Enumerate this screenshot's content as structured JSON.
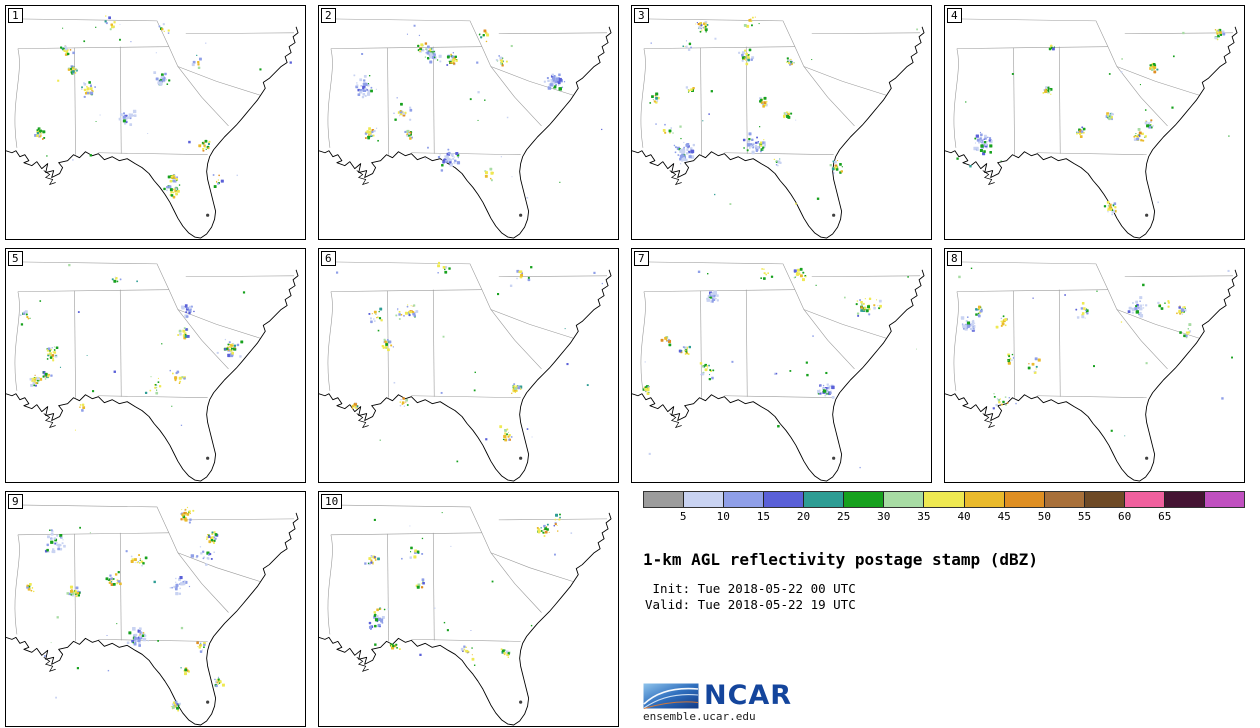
{
  "figure": {
    "title": "1-km AGL reflectivity postage stamp (dBZ)",
    "init_line": " Init: Tue 2018-05-22 00 UTC",
    "valid_line": "Valid: Tue 2018-05-22 19 UTC"
  },
  "panels": [
    {
      "label": "1"
    },
    {
      "label": "2"
    },
    {
      "label": "3"
    },
    {
      "label": "4"
    },
    {
      "label": "5"
    },
    {
      "label": "6"
    },
    {
      "label": "7"
    },
    {
      "label": "8"
    },
    {
      "label": "9"
    },
    {
      "label": "10"
    }
  ],
  "colorbar": {
    "units": "dBZ",
    "tick_labels": [
      "5",
      "10",
      "15",
      "20",
      "25",
      "30",
      "35",
      "40",
      "45",
      "50",
      "55",
      "60",
      "65"
    ],
    "tick_values": [
      5,
      10,
      15,
      20,
      25,
      30,
      35,
      40,
      45,
      50,
      55,
      60,
      65
    ],
    "segment_colors": [
      "#9c9c9c",
      "#c9d3f2",
      "#8f9fe8",
      "#5a60d8",
      "#2e9d94",
      "#17a11e",
      "#a8dca4",
      "#efe952",
      "#eaba2c",
      "#df8f23",
      "#a8703a",
      "#6e4a26",
      "#f0609e",
      "#451433",
      "#c050c0"
    ]
  },
  "branding": {
    "logo": "NCAR",
    "site": "ensemble.ucar.edu",
    "text_color": "#14459c"
  }
}
